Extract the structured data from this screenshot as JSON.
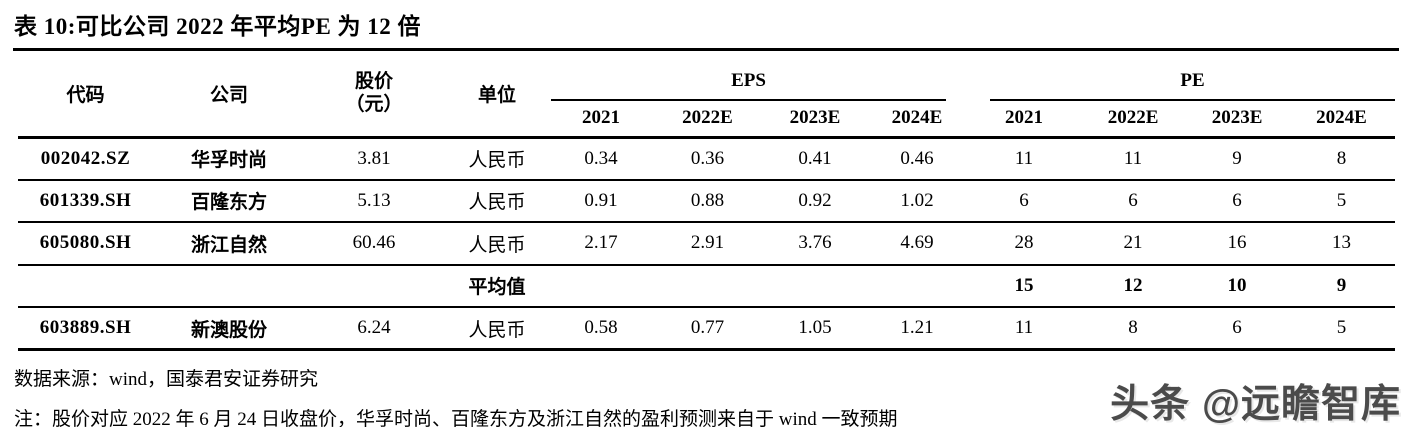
{
  "title": "表 10:可比公司 2022 年平均PE 为 12 倍",
  "table": {
    "headers": {
      "code": "代码",
      "company": "公司",
      "price_line1": "股价",
      "price_line2": "（元）",
      "unit": "单位",
      "eps_group": "EPS",
      "pe_group": "PE",
      "years": [
        "2021",
        "2022E",
        "2023E",
        "2024E"
      ]
    },
    "rows": [
      {
        "code": "002042.SZ",
        "company": "华孚时尚",
        "price": "3.81",
        "unit": "人民币",
        "eps": [
          "0.34",
          "0.36",
          "0.41",
          "0.46"
        ],
        "pe": [
          "11",
          "11",
          "9",
          "8"
        ],
        "is_average": false
      },
      {
        "code": "601339.SH",
        "company": "百隆东方",
        "price": "5.13",
        "unit": "人民币",
        "eps": [
          "0.91",
          "0.88",
          "0.92",
          "1.02"
        ],
        "pe": [
          "6",
          "6",
          "6",
          "5"
        ],
        "is_average": false
      },
      {
        "code": "605080.SH",
        "company": "浙江自然",
        "price": "60.46",
        "unit": "人民币",
        "eps": [
          "2.17",
          "2.91",
          "3.76",
          "4.69"
        ],
        "pe": [
          "28",
          "21",
          "16",
          "13"
        ],
        "is_average": false
      },
      {
        "code": "",
        "company": "",
        "price": "",
        "unit": "平均值",
        "eps": [
          "",
          "",
          "",
          ""
        ],
        "pe": [
          "15",
          "12",
          "10",
          "9"
        ],
        "is_average": true
      },
      {
        "code": "603889.SH",
        "company": "新澳股份",
        "price": "6.24",
        "unit": "人民币",
        "eps": [
          "0.58",
          "0.77",
          "1.05",
          "1.21"
        ],
        "pe": [
          "11",
          "8",
          "6",
          "5"
        ],
        "is_average": false
      }
    ]
  },
  "footer": {
    "source": "数据来源：wind，国泰君安证券研究",
    "note": "注：股价对应 2022 年 6 月 24 日收盘价，华孚时尚、百隆东方及浙江自然的盈利预测来自于 wind 一致预期"
  },
  "watermark": "头条 @远瞻智库",
  "colors": {
    "text": "#000000",
    "background": "#ffffff",
    "rule": "#000000",
    "watermark": "#4b4b4b"
  }
}
